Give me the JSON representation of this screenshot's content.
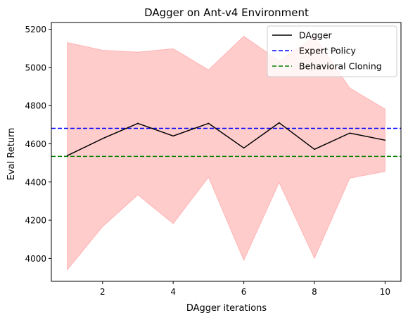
{
  "chart_data": {
    "type": "line",
    "title": "DAgger on Ant-v4 Environment",
    "xlabel": "DAgger iterations",
    "ylabel": "Eval Return",
    "xlim": [
      0.55,
      10.45
    ],
    "ylim": [
      3880,
      5235
    ],
    "xticks": [
      2,
      4,
      6,
      8,
      10
    ],
    "yticks": [
      4000,
      4200,
      4400,
      4600,
      4800,
      5000,
      5200
    ],
    "grid": false,
    "legend_position": "top-right",
    "x": [
      1,
      2,
      3,
      4,
      5,
      6,
      7,
      8,
      9,
      10
    ],
    "series": [
      {
        "name": "DAgger",
        "style": "solid",
        "color": "#000000",
        "values": [
          4538,
          4627,
          4707,
          4641,
          4707,
          4578,
          4710,
          4571,
          4656,
          4619
        ]
      }
    ],
    "band": {
      "color": "#ff0000",
      "upper": [
        5130,
        5090,
        5080,
        5098,
        4987,
        5163,
        5034,
        5163,
        4892,
        4782
      ],
      "lower": [
        3940,
        4166,
        4333,
        4182,
        4425,
        3990,
        4397,
        4000,
        4420,
        4455
      ]
    },
    "reference_lines": [
      {
        "name": "Expert Policy",
        "value": 4681,
        "style": "dashed",
        "color": "#0000ff"
      },
      {
        "name": "Behavioral Cloning",
        "value": 4534,
        "style": "dashed",
        "color": "#008000"
      }
    ]
  }
}
